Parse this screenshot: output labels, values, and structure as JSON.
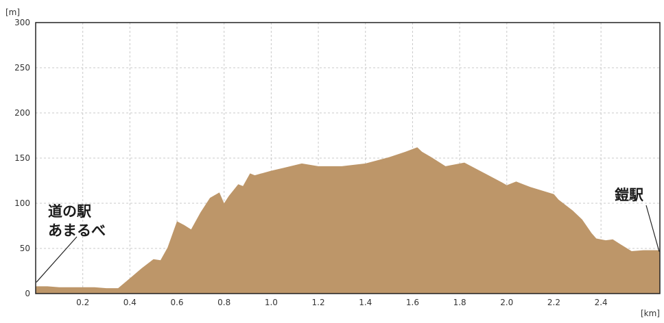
{
  "chart_data": {
    "type": "area",
    "title": "",
    "y_unit": "[m]",
    "x_unit": "[km]",
    "xlim": [
      0,
      2.65
    ],
    "ylim": [
      0,
      300
    ],
    "x_ticks": [
      "0.2",
      "0.4",
      "0.6",
      "0.8",
      "1.0",
      "1.2",
      "1.4",
      "1.6",
      "1.8",
      "2.0",
      "2.2",
      "2.4"
    ],
    "y_ticks": [
      "0",
      "50",
      "100",
      "150",
      "200",
      "250",
      "300"
    ],
    "grid": true,
    "fill_color": "#bd9669",
    "series": [
      {
        "x": [
          0,
          0.05,
          0.1,
          0.15,
          0.2,
          0.25,
          0.3,
          0.35,
          0.4,
          0.45,
          0.5,
          0.53,
          0.56,
          0.6,
          0.63,
          0.66,
          0.7,
          0.74,
          0.78,
          0.8,
          0.82,
          0.86,
          0.88,
          0.91,
          0.93,
          1.0,
          1.05,
          1.13,
          1.2,
          1.3,
          1.4,
          1.5,
          1.57,
          1.62,
          1.64,
          1.68,
          1.74,
          1.82,
          1.9,
          1.98,
          2.0,
          2.04,
          2.1,
          2.2,
          2.22,
          2.28,
          2.32,
          2.36,
          2.38,
          2.42,
          2.45,
          2.48,
          2.53,
          2.58,
          2.65
        ],
        "y": [
          8,
          8,
          7,
          7,
          7,
          7,
          6,
          6,
          17,
          28,
          38,
          37,
          51,
          80,
          76,
          71,
          90,
          106,
          112,
          100,
          108,
          121,
          119,
          133,
          131,
          136,
          139,
          144,
          141,
          141,
          144,
          151,
          157,
          162,
          157,
          151,
          141,
          145,
          134,
          123,
          120,
          124,
          118,
          110,
          104,
          92,
          82,
          67,
          61,
          59,
          60,
          55,
          47,
          48,
          48
        ]
      }
    ],
    "annotations": [
      {
        "lines": [
          "道の駅",
          "あまるべ"
        ],
        "x": 0,
        "y": 8
      },
      {
        "lines": [
          "鎧駅"
        ],
        "x": 2.65,
        "y": 48
      }
    ]
  }
}
